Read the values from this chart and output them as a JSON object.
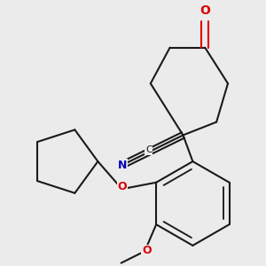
{
  "bg_color": "#ebebeb",
  "bond_color": "#1a1a1a",
  "oxygen_color": "#dd0000",
  "nitrogen_color": "#0000bb",
  "lw": 1.5,
  "figsize": [
    3.0,
    3.0
  ],
  "dpi": 100,
  "xlim": [
    0,
    300
  ],
  "ylim": [
    0,
    300
  ]
}
